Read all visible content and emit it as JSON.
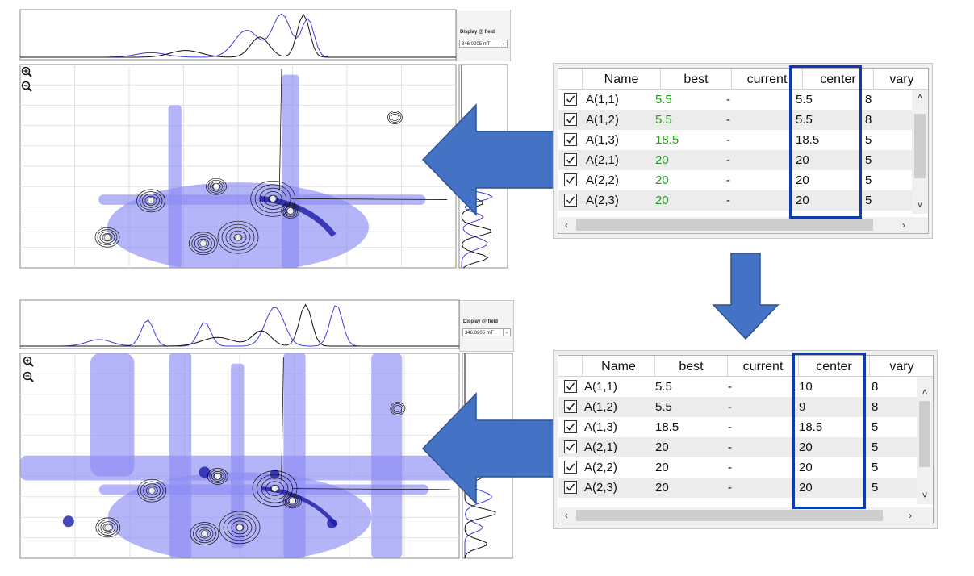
{
  "colors": {
    "arrow_fill": "#4472c4",
    "arrow_stroke": "#2f528f",
    "highlight_box": "#0a3db0",
    "best_green": "#22a01a",
    "contour_blue": "#8c8cf5",
    "contour_dark": "#1a1aa8"
  },
  "icons": {
    "zoom_in": "zoom-in-icon",
    "zoom_out": "zoom-out-icon",
    "checkbox": "checkbox-checked-icon",
    "scroll_up": "chevron-up-icon",
    "scroll_down": "chevron-down-icon",
    "scroll_left": "chevron-left-icon",
    "scroll_right": "chevron-right-icon"
  },
  "top_panel": {
    "display_label": "Display @ field",
    "field_value": "346.0205 mT",
    "table": {
      "columns": [
        "Name",
        "best",
        "current",
        "center",
        "vary"
      ],
      "rows": [
        {
          "name": "A(1,1)",
          "best": "5.5",
          "current": "-",
          "center": "5.5",
          "vary": "8"
        },
        {
          "name": "A(1,2)",
          "best": "5.5",
          "current": "-",
          "center": "5.5",
          "vary": "8"
        },
        {
          "name": "A(1,3)",
          "best": "18.5",
          "current": "-",
          "center": "18.5",
          "vary": "5"
        },
        {
          "name": "A(2,1)",
          "best": "20",
          "current": "-",
          "center": "20",
          "vary": "5"
        },
        {
          "name": "A(2,2)",
          "best": "20",
          "current": "-",
          "center": "20",
          "vary": "5"
        },
        {
          "name": "A(2,3)",
          "best": "20",
          "current": "-",
          "center": "20",
          "vary": "5"
        }
      ]
    }
  },
  "bottom_panel": {
    "display_label": "Display @ field",
    "field_value": "346.0205 mT",
    "table": {
      "columns": [
        "Name",
        "best",
        "current",
        "center",
        "vary"
      ],
      "rows": [
        {
          "name": "A(1,1)",
          "best": "5.5",
          "current": "-",
          "center": "10",
          "vary": "8"
        },
        {
          "name": "A(1,2)",
          "best": "5.5",
          "current": "-",
          "center": "9",
          "vary": "8"
        },
        {
          "name": "A(1,3)",
          "best": "18.5",
          "current": "-",
          "center": "18.5",
          "vary": "5"
        },
        {
          "name": "A(2,1)",
          "best": "20",
          "current": "-",
          "center": "20",
          "vary": "5"
        },
        {
          "name": "A(2,2)",
          "best": "20",
          "current": "-",
          "center": "20",
          "vary": "5"
        },
        {
          "name": "A(2,3)",
          "best": "20",
          "current": "-",
          "center": "20",
          "vary": "5"
        }
      ]
    }
  }
}
